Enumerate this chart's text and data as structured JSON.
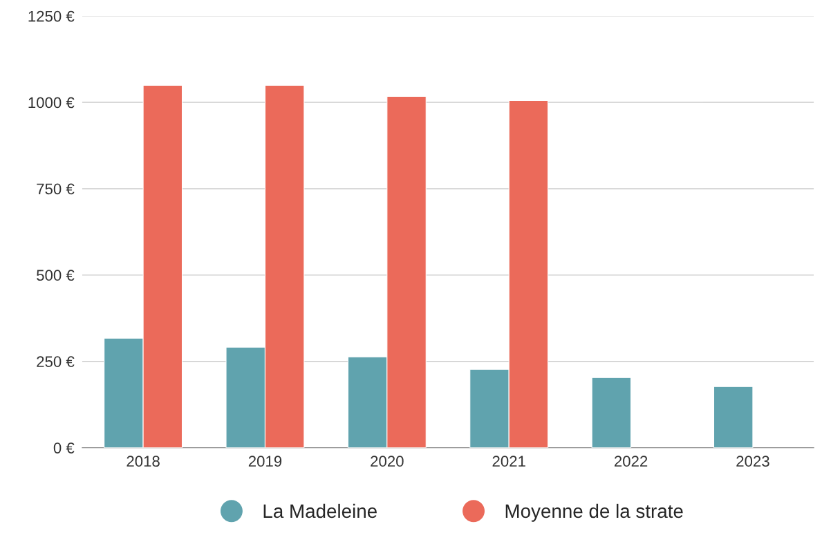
{
  "chart_data": {
    "type": "bar",
    "categories": [
      "2018",
      "2019",
      "2020",
      "2021",
      "2022",
      "2023"
    ],
    "series": [
      {
        "name": "La Madeleine",
        "color": "#60a3ae",
        "values": [
          317,
          291,
          263,
          227,
          203,
          177
        ]
      },
      {
        "name": "Moyenne de la strate",
        "color": "#eb6a5a",
        "values": [
          1049,
          1049,
          1017,
          1005,
          null,
          null
        ]
      }
    ],
    "ylim": [
      0,
      1250
    ],
    "yticks": [
      {
        "value": 0,
        "label": "0 €"
      },
      {
        "value": 250,
        "label": "250 €"
      },
      {
        "value": 500,
        "label": "500 €"
      },
      {
        "value": 750,
        "label": "750 €"
      },
      {
        "value": 1000,
        "label": "1000 €"
      },
      {
        "value": 1250,
        "label": "1250 €"
      }
    ],
    "grid": "y",
    "legend": "bottom"
  }
}
